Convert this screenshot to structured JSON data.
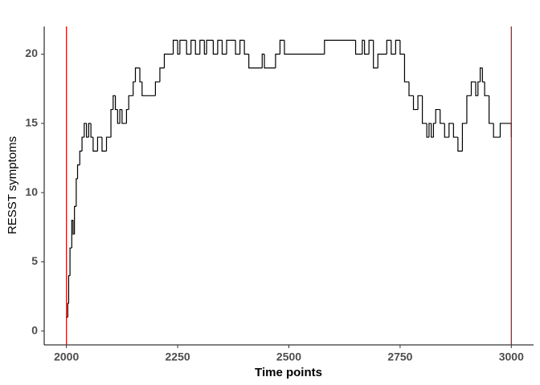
{
  "chart_data": {
    "type": "step",
    "x_label": "Time points",
    "y_label": "RESST symptoms",
    "xlim": [
      1950,
      3050
    ],
    "xticks": [
      2000,
      2250,
      2500,
      2750,
      3000
    ],
    "ylim": [
      -1,
      22
    ],
    "yticks": [
      0,
      5,
      10,
      15,
      20
    ],
    "vlines": [
      2000,
      3000
    ],
    "vline_color": "#cc0000",
    "series": [
      {
        "color": "#000000",
        "x": [
          2000,
          2003,
          2005,
          2008,
          2012,
          2015,
          2018,
          2022,
          2025,
          2030,
          2035,
          2040,
          2045,
          2050,
          2055,
          2060,
          2070,
          2080,
          2090,
          2100,
          2105,
          2110,
          2115,
          2120,
          2125,
          2135,
          2140,
          2150,
          2155,
          2165,
          2170,
          2200,
          2210,
          2220,
          2240,
          2250,
          2255,
          2270,
          2280,
          2290,
          2300,
          2310,
          2315,
          2330,
          2340,
          2350,
          2360,
          2380,
          2390,
          2400,
          2410,
          2440,
          2445,
          2470,
          2480,
          2490,
          2580,
          2650,
          2665,
          2670,
          2680,
          2690,
          2700,
          2720,
          2730,
          2740,
          2750,
          2760,
          2770,
          2780,
          2790,
          2800,
          2810,
          2815,
          2820,
          2825,
          2830,
          2840,
          2850,
          2860,
          2870,
          2880,
          2890,
          2900,
          2910,
          2920,
          2925,
          2930,
          2935,
          2940,
          2950,
          2960,
          2975,
          2999,
          3000
        ],
        "values": [
          1,
          2,
          4,
          6,
          8,
          7,
          9,
          11,
          12,
          13,
          14,
          15,
          14,
          15,
          14,
          13,
          14,
          13,
          14,
          16,
          17,
          16,
          15,
          16,
          15,
          16,
          17,
          18,
          19,
          18,
          17,
          18,
          19,
          20,
          21,
          20,
          21,
          20,
          21,
          20,
          21,
          20,
          21,
          20,
          21,
          20,
          21,
          20,
          21,
          20,
          19,
          20,
          19,
          20,
          21,
          20,
          21,
          20,
          21,
          20,
          21,
          19,
          20,
          21,
          20,
          21,
          20,
          18,
          17,
          16,
          17,
          15,
          14,
          15,
          14,
          15,
          16,
          15,
          14,
          15,
          14,
          13,
          15,
          17,
          18,
          17,
          18,
          19,
          18,
          17,
          15,
          14,
          15,
          15,
          14
        ]
      }
    ]
  }
}
